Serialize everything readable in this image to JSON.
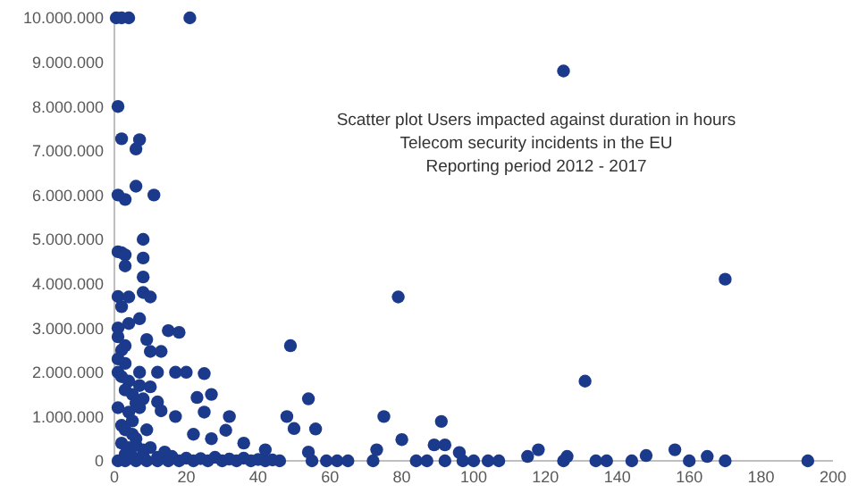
{
  "chart_data": {
    "type": "scatter",
    "title": "Scatter plot Users impacted against duration in hours\nTelecom security incidents in the EU\nReporting period 2012 - 2017",
    "marker": "circle",
    "grid": false,
    "xlim": [
      0,
      200
    ],
    "xticks": [
      0,
      20,
      40,
      60,
      80,
      100,
      120,
      140,
      160,
      180,
      200
    ],
    "ylim": [
      0,
      10000000
    ],
    "yticks": [
      {
        "value": 0,
        "label": "0"
      },
      {
        "value": 1000000,
        "label": "1.000.000"
      },
      {
        "value": 2000000,
        "label": "2.000.000"
      },
      {
        "value": 3000000,
        "label": "3.000.000"
      },
      {
        "value": 4000000,
        "label": "4.000.000"
      },
      {
        "value": 5000000,
        "label": "5.000.000"
      },
      {
        "value": 6000000,
        "label": "6.000.000"
      },
      {
        "value": 7000000,
        "label": "7.000.000"
      },
      {
        "value": 8000000,
        "label": "8.000.000"
      },
      {
        "value": 9000000,
        "label": "9.000.000"
      },
      {
        "value": 10000000,
        "label": "10.000.000"
      }
    ],
    "series": [
      {
        "color": "#1c3a8c",
        "x": [
          125,
          170,
          79,
          49,
          131,
          54,
          75,
          48,
          91,
          50,
          56,
          80,
          89,
          92,
          96,
          118,
          156,
          148,
          165,
          115,
          126,
          54,
          84,
          87,
          92,
          97,
          100,
          104,
          107,
          125,
          134,
          137,
          144,
          160,
          170,
          193,
          62,
          65,
          59,
          55,
          72,
          73,
          46,
          42,
          0.5,
          2,
          4,
          21,
          1,
          2,
          7,
          6,
          1,
          3,
          6,
          11,
          8,
          2,
          1,
          3,
          8,
          3,
          8,
          1,
          8,
          10,
          4,
          2,
          7,
          1,
          4,
          15,
          18,
          9,
          3,
          10,
          13,
          12,
          17,
          20,
          25,
          1,
          7,
          10,
          12,
          23,
          27,
          13,
          25,
          17,
          32,
          31,
          7,
          22,
          27,
          36,
          42,
          1,
          2,
          3,
          4,
          5,
          6,
          1,
          2,
          3,
          4,
          5,
          7,
          8,
          1,
          2,
          3,
          5,
          6,
          9,
          2,
          4,
          6,
          8,
          10,
          14,
          3,
          5,
          8,
          12,
          16,
          20,
          24,
          28,
          32,
          36,
          40,
          44,
          1,
          3,
          6,
          9,
          12,
          15,
          18,
          22,
          26,
          30,
          34,
          38
        ],
        "values": [
          8800000,
          4100000,
          3700000,
          2600000,
          1800000,
          1400000,
          1000000,
          1000000,
          890000,
          730000,
          720000,
          480000,
          360000,
          360000,
          190000,
          250000,
          250000,
          120000,
          100000,
          100000,
          100000,
          200000,
          0,
          0,
          0,
          0,
          0,
          0,
          0,
          0,
          0,
          0,
          0,
          0,
          0,
          0,
          0,
          0,
          0,
          0,
          0,
          250000,
          0,
          0,
          10000000,
          10000000,
          10000000,
          10000000,
          8000000,
          7270000,
          7250000,
          7040000,
          6000000,
          5900000,
          6200000,
          6000000,
          5000000,
          4700000,
          4720000,
          4650000,
          4580000,
          4400000,
          4150000,
          3710000,
          3800000,
          3700000,
          3700000,
          3480000,
          3210000,
          3000000,
          3100000,
          2940000,
          2900000,
          2740000,
          2600000,
          2470000,
          2470000,
          2000000,
          2000000,
          2000000,
          1970000,
          2000000,
          2000000,
          1670000,
          1330000,
          1430000,
          1500000,
          1130000,
          1100000,
          1000000,
          1000000,
          690000,
          1200000,
          600000,
          500000,
          400000,
          250000,
          2800000,
          2500000,
          2200000,
          1800000,
          1500000,
          1300000,
          2300000,
          1900000,
          1600000,
          1100000,
          900000,
          1700000,
          1400000,
          1200000,
          800000,
          700000,
          600000,
          500000,
          700000,
          400000,
          300000,
          350000,
          250000,
          300000,
          200000,
          150000,
          100000,
          120000,
          80000,
          100000,
          60000,
          50000,
          80000,
          40000,
          60000,
          30000,
          20000,
          0,
          0,
          0,
          0,
          0,
          0,
          0,
          0,
          0,
          0,
          0,
          0
        ]
      }
    ]
  }
}
